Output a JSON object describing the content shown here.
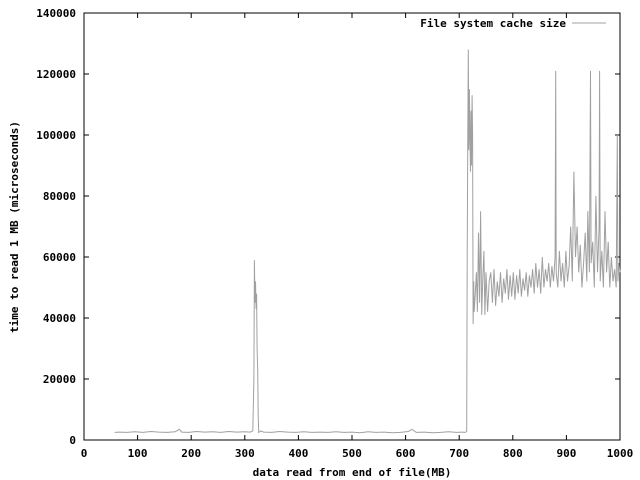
{
  "chart_data": {
    "type": "line",
    "title": "",
    "xlabel": "data read from end of file(MB)",
    "ylabel": "time to read 1 MB (microseconds)",
    "xlim": [
      0,
      1000
    ],
    "ylim": [
      0,
      140000
    ],
    "xticks": [
      0,
      100,
      200,
      300,
      400,
      500,
      600,
      700,
      800,
      900,
      1000
    ],
    "yticks": [
      0,
      20000,
      40000,
      60000,
      80000,
      100000,
      120000,
      140000
    ],
    "grid": false,
    "legend_position": "top-right",
    "series": [
      {
        "name": "File system cache size",
        "color": "#a0a0a0",
        "points": [
          [
            57,
            2500
          ],
          [
            65,
            2600
          ],
          [
            80,
            2500
          ],
          [
            95,
            2700
          ],
          [
            110,
            2500
          ],
          [
            125,
            2800
          ],
          [
            140,
            2600
          ],
          [
            155,
            2500
          ],
          [
            170,
            2700
          ],
          [
            178,
            3500
          ],
          [
            182,
            2600
          ],
          [
            195,
            2500
          ],
          [
            210,
            2800
          ],
          [
            225,
            2600
          ],
          [
            240,
            2700
          ],
          [
            255,
            2500
          ],
          [
            270,
            2800
          ],
          [
            285,
            2600
          ],
          [
            300,
            2700
          ],
          [
            310,
            2600
          ],
          [
            315,
            3000
          ],
          [
            317,
            20000
          ],
          [
            318,
            59000
          ],
          [
            319,
            45000
          ],
          [
            320,
            52000
          ],
          [
            321,
            43000
          ],
          [
            322,
            48000
          ],
          [
            323,
            30000
          ],
          [
            324,
            23000
          ],
          [
            325,
            8000
          ],
          [
            326,
            2500
          ],
          [
            330,
            3000
          ],
          [
            335,
            2600
          ],
          [
            350,
            2500
          ],
          [
            365,
            2800
          ],
          [
            380,
            2600
          ],
          [
            395,
            2500
          ],
          [
            410,
            2700
          ],
          [
            425,
            2500
          ],
          [
            440,
            2600
          ],
          [
            455,
            2500
          ],
          [
            470,
            2700
          ],
          [
            485,
            2500
          ],
          [
            500,
            2600
          ],
          [
            515,
            2400
          ],
          [
            530,
            2700
          ],
          [
            545,
            2500
          ],
          [
            560,
            2600
          ],
          [
            575,
            2400
          ],
          [
            590,
            2500
          ],
          [
            605,
            2800
          ],
          [
            612,
            3500
          ],
          [
            620,
            2500
          ],
          [
            635,
            2600
          ],
          [
            650,
            2400
          ],
          [
            665,
            2500
          ],
          [
            680,
            2700
          ],
          [
            695,
            2500
          ],
          [
            705,
            2600
          ],
          [
            712,
            2500
          ],
          [
            714,
            3000
          ],
          [
            715,
            60000
          ],
          [
            716,
            100000
          ],
          [
            717,
            128000
          ],
          [
            718,
            95000
          ],
          [
            719,
            115000
          ],
          [
            720,
            100000
          ],
          [
            721,
            88000
          ],
          [
            722,
            108000
          ],
          [
            723,
            90000
          ],
          [
            724,
            113000
          ],
          [
            725,
            100000
          ],
          [
            726,
            38000
          ],
          [
            727,
            52000
          ],
          [
            728,
            42000
          ],
          [
            730,
            48000
          ],
          [
            732,
            55000
          ],
          [
            734,
            42000
          ],
          [
            736,
            68000
          ],
          [
            738,
            45000
          ],
          [
            740,
            75000
          ],
          [
            742,
            41000
          ],
          [
            744,
            53000
          ],
          [
            746,
            62000
          ],
          [
            748,
            41000
          ],
          [
            750,
            55000
          ],
          [
            753,
            42000
          ],
          [
            756,
            52000
          ],
          [
            759,
            55000
          ],
          [
            762,
            45000
          ],
          [
            765,
            56000
          ],
          [
            768,
            44000
          ],
          [
            771,
            52000
          ],
          [
            774,
            47000
          ],
          [
            777,
            55000
          ],
          [
            780,
            45000
          ],
          [
            783,
            53000
          ],
          [
            786,
            48000
          ],
          [
            789,
            56000
          ],
          [
            792,
            46000
          ],
          [
            795,
            54000
          ],
          [
            798,
            47000
          ],
          [
            801,
            55000
          ],
          [
            804,
            46000
          ],
          [
            807,
            54000
          ],
          [
            810,
            48000
          ],
          [
            813,
            56000
          ],
          [
            816,
            47000
          ],
          [
            819,
            53000
          ],
          [
            822,
            49000
          ],
          [
            825,
            55000
          ],
          [
            828,
            47000
          ],
          [
            831,
            54000
          ],
          [
            834,
            50000
          ],
          [
            837,
            56000
          ],
          [
            840,
            48000
          ],
          [
            843,
            58000
          ],
          [
            846,
            50000
          ],
          [
            849,
            56000
          ],
          [
            852,
            48000
          ],
          [
            855,
            60000
          ],
          [
            858,
            50000
          ],
          [
            861,
            56000
          ],
          [
            864,
            52000
          ],
          [
            867,
            58000
          ],
          [
            870,
            50000
          ],
          [
            873,
            57000
          ],
          [
            876,
            52000
          ],
          [
            879,
            60000
          ],
          [
            880,
            121000
          ],
          [
            881,
            55000
          ],
          [
            884,
            50000
          ],
          [
            887,
            62000
          ],
          [
            890,
            52000
          ],
          [
            893,
            58000
          ],
          [
            896,
            50000
          ],
          [
            899,
            62000
          ],
          [
            902,
            52000
          ],
          [
            905,
            57000
          ],
          [
            908,
            70000
          ],
          [
            911,
            52000
          ],
          [
            914,
            88000
          ],
          [
            917,
            60000
          ],
          [
            920,
            70000
          ],
          [
            923,
            55000
          ],
          [
            926,
            64000
          ],
          [
            929,
            50000
          ],
          [
            932,
            58000
          ],
          [
            935,
            68000
          ],
          [
            938,
            52000
          ],
          [
            940,
            75000
          ],
          [
            943,
            55000
          ],
          [
            945,
            121000
          ],
          [
            946,
            58000
          ],
          [
            949,
            65000
          ],
          [
            952,
            50000
          ],
          [
            955,
            80000
          ],
          [
            958,
            55000
          ],
          [
            961,
            70000
          ],
          [
            962,
            121000
          ],
          [
            963,
            52000
          ],
          [
            966,
            62000
          ],
          [
            969,
            50000
          ],
          [
            972,
            75000
          ],
          [
            975,
            55000
          ],
          [
            978,
            65000
          ],
          [
            981,
            50000
          ],
          [
            984,
            60000
          ],
          [
            987,
            52000
          ],
          [
            990,
            56000
          ],
          [
            993,
            50000
          ],
          [
            995,
            100000
          ],
          [
            996,
            52000
          ],
          [
            998,
            58000
          ],
          [
            1000,
            55000
          ]
        ]
      }
    ]
  }
}
